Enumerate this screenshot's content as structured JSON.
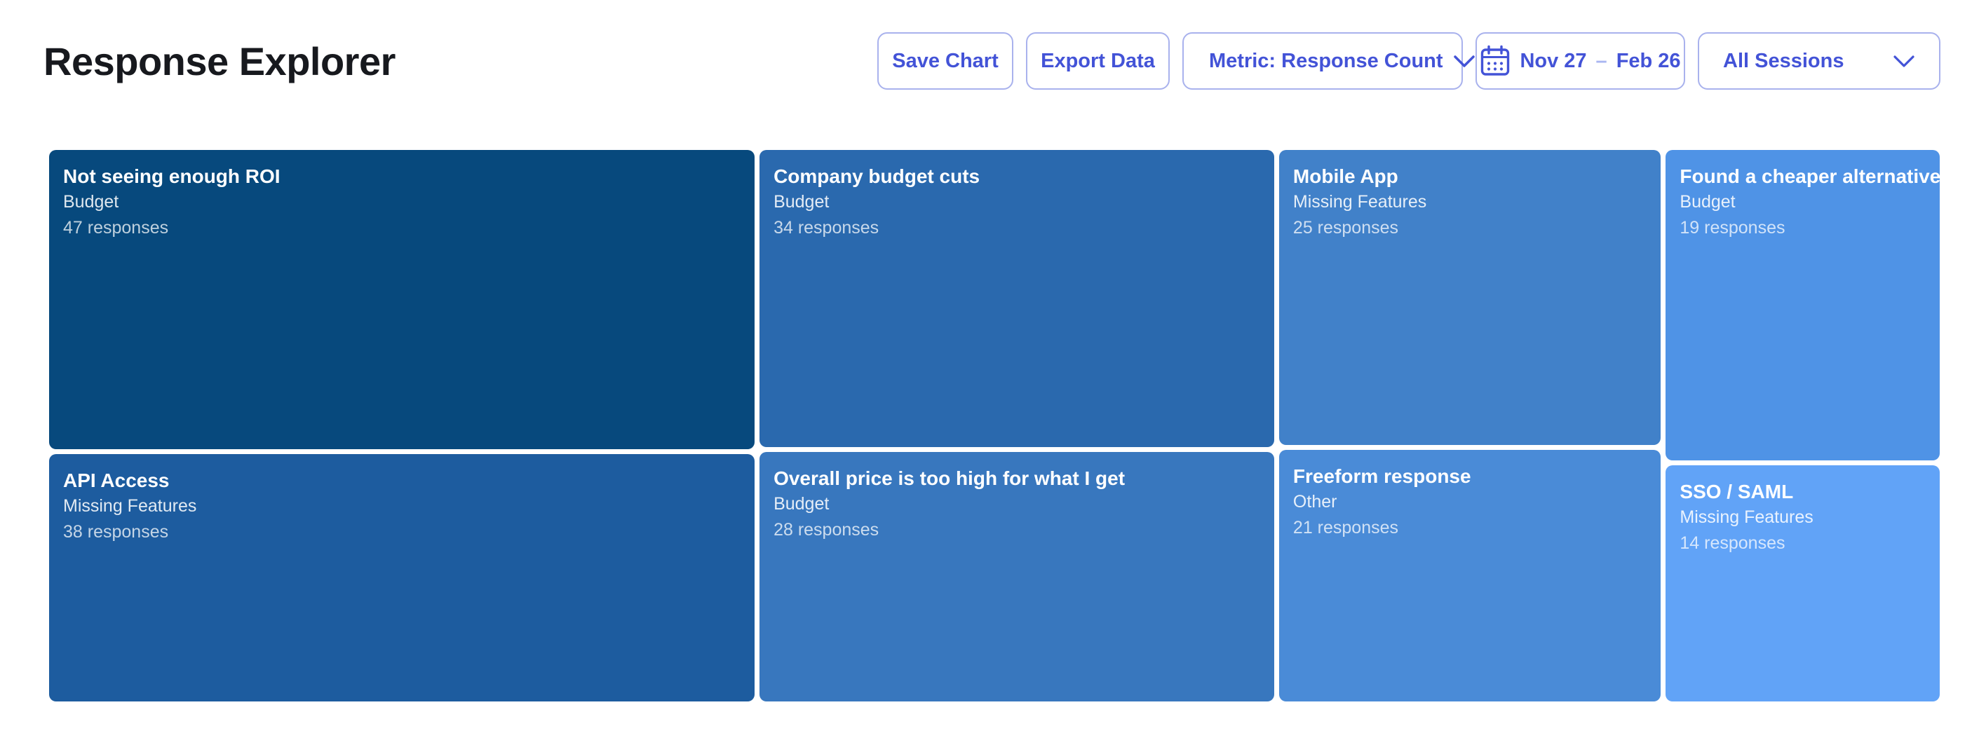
{
  "header": {
    "title": "Response Explorer"
  },
  "toolbar": {
    "save_chart_label": "Save Chart",
    "export_data_label": "Export Data",
    "metric_label": "Metric: Response Count",
    "date_range": {
      "start": "Nov 27",
      "separator": "–",
      "end": "Feb 26"
    },
    "sessions_label": "All Sessions",
    "accent_color": "#4353d7",
    "border_color": "#a9b2ed"
  },
  "chart_data": {
    "type": "treemap",
    "title": "Response Explorer",
    "metric": "Response Count",
    "unit_label": "responses",
    "color_ramp_note": "darker blue = higher response count",
    "columns": [
      {
        "tiles": [
          {
            "label": "Not seeing enough ROI",
            "category": "Budget",
            "count": 47,
            "count_label": "47 responses",
            "color": "#07497d"
          },
          {
            "label": "API Access",
            "category": "Missing Features",
            "count": 38,
            "count_label": "38 responses",
            "color": "#1d5c9f"
          }
        ]
      },
      {
        "tiles": [
          {
            "label": "Company budget cuts",
            "category": "Budget",
            "count": 34,
            "count_label": "34 responses",
            "color": "#2a69ae"
          },
          {
            "label": "Overall price is too high for what I get",
            "category": "Budget",
            "count": 28,
            "count_label": "28 responses",
            "color": "#3877be"
          }
        ]
      },
      {
        "tiles": [
          {
            "label": "Mobile App",
            "category": "Missing Features",
            "count": 25,
            "count_label": "25 responses",
            "color": "#4181c9"
          },
          {
            "label": "Freeform response",
            "category": "Other",
            "count": 21,
            "count_label": "21 responses",
            "color": "#4a8bd7"
          }
        ]
      },
      {
        "tiles": [
          {
            "label": "Found a cheaper alternative",
            "category": "Budget",
            "count": 19,
            "count_label": "19 responses",
            "color": "#4f93e6"
          },
          {
            "label": "SSO / SAML",
            "category": "Missing Features",
            "count": 14,
            "count_label": "14 responses",
            "color": "#61a3f7"
          }
        ]
      }
    ]
  }
}
